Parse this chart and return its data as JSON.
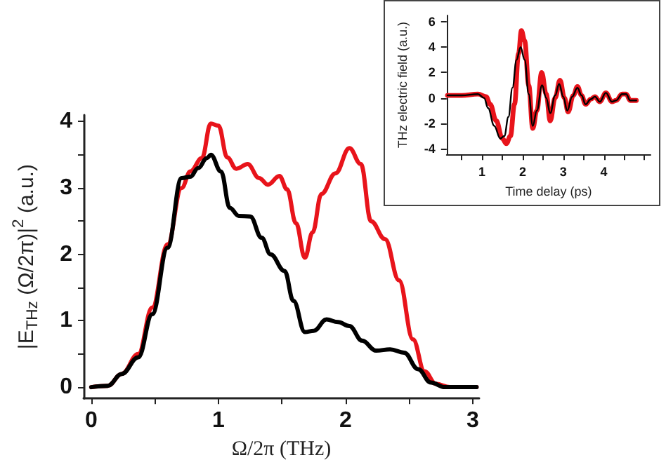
{
  "chart_data": [
    {
      "type": "line",
      "xlabel": "Ω/2π (THz)",
      "ylabel": "|E$_{THz}$ (Ω/2π)|$^{2}$ (a.u.)",
      "xlim": [
        -0.06,
        3.05
      ],
      "ylim": [
        -0.17,
        4.1
      ],
      "xticks": [
        0,
        {
          "value": 0.5,
          "label": null
        },
        1,
        {
          "value": 1.5,
          "label": null
        },
        2,
        {
          "value": 2.5,
          "label": null
        },
        3
      ],
      "yticks": [
        0,
        {
          "value": 0.5,
          "label": null
        },
        1,
        {
          "value": 1.5,
          "label": null
        },
        2,
        {
          "value": 2.5,
          "label": null
        },
        3,
        {
          "value": 3.5,
          "label": null
        },
        4
      ],
      "line_style": "solid",
      "series": [
        {
          "color": "#e8141b",
          "x": [
            0,
            0.13,
            0.24,
            0.37,
            0.48,
            0.6,
            0.71,
            0.78,
            0.87,
            0.94,
            1.0,
            1.07,
            1.14,
            1.23,
            1.32,
            1.39,
            1.48,
            1.54,
            1.61,
            1.68,
            1.74,
            1.81,
            1.92,
            2.03,
            2.12,
            2.2,
            2.31,
            2.42,
            2.53,
            2.62,
            2.71,
            2.82,
            3.03
          ],
          "values": [
            0,
            0.02,
            0.2,
            0.5,
            1.2,
            2.15,
            3.0,
            3.25,
            3.45,
            3.97,
            3.94,
            3.46,
            3.29,
            3.36,
            3.15,
            3.05,
            3.18,
            2.98,
            2.47,
            1.95,
            2.33,
            2.91,
            3.22,
            3.6,
            3.36,
            2.5,
            2.23,
            1.61,
            0.72,
            0.24,
            0.05,
            0,
            0
          ]
        },
        {
          "color": "#000000",
          "x": [
            0,
            0.13,
            0.24,
            0.37,
            0.48,
            0.6,
            0.71,
            0.78,
            0.84,
            0.91,
            0.94,
            1.02,
            1.09,
            1.16,
            1.25,
            1.34,
            1.41,
            1.52,
            1.59,
            1.68,
            1.75,
            1.85,
            1.94,
            2.03,
            2.13,
            2.24,
            2.35,
            2.46,
            2.57,
            2.67,
            2.78,
            3.03
          ],
          "values": [
            0,
            0.02,
            0.2,
            0.45,
            1.1,
            2.1,
            3.15,
            3.17,
            3.3,
            3.45,
            3.5,
            3.25,
            2.7,
            2.58,
            2.57,
            2.25,
            2.0,
            1.75,
            1.3,
            0.83,
            0.85,
            1.02,
            0.98,
            0.92,
            0.7,
            0.55,
            0.57,
            0.52,
            0.27,
            0.07,
            0,
            0
          ]
        }
      ]
    },
    {
      "type": "line",
      "xlabel": "Time delay (ps)",
      "ylabel": "THz electric field (a.u.)",
      "xlim": [
        0.13,
        5.15
      ],
      "ylim": [
        -4.45,
        6.5
      ],
      "xticks": [
        {
          "value": 0.5,
          "label": null
        },
        1,
        {
          "value": 1.5,
          "label": null
        },
        2,
        {
          "value": 2.5,
          "label": null
        },
        3,
        {
          "value": 3.5,
          "label": null
        },
        4,
        {
          "value": 4.5,
          "label": null
        },
        {
          "value": 5,
          "label": null
        }
      ],
      "yticks": [
        -4,
        -2,
        0,
        2,
        4,
        6
      ],
      "line_style": "solid",
      "series": [
        {
          "color": "#e8141b",
          "x": [
            0.15,
            0.5,
            0.9,
            1.1,
            1.2,
            1.35,
            1.5,
            1.6,
            1.7,
            1.8,
            1.9,
            1.97,
            2.05,
            2.15,
            2.25,
            2.35,
            2.47,
            2.58,
            2.68,
            2.8,
            2.92,
            3.03,
            3.12,
            3.25,
            3.35,
            3.45,
            3.55,
            3.68,
            3.78,
            3.9,
            4.05,
            4.2,
            4.3,
            4.45,
            4.55,
            4.65,
            4.8
          ],
          "values": [
            0.2,
            0.2,
            0.3,
            0.1,
            -0.5,
            -1.8,
            -3.2,
            -3.6,
            -3.0,
            -0.5,
            3.5,
            5.3,
            4.5,
            1.0,
            -2.4,
            -1.0,
            2.0,
            0.3,
            -1.8,
            0.0,
            1.4,
            0.0,
            -1.1,
            0.2,
            0.9,
            0.2,
            -0.5,
            -0.1,
            0.1,
            -0.3,
            0.4,
            -0.3,
            -0.2,
            0.3,
            0.3,
            -0.2,
            -0.2
          ]
        },
        {
          "color": "#000000",
          "x": [
            0.15,
            0.5,
            0.9,
            1.05,
            1.15,
            1.3,
            1.45,
            1.55,
            1.65,
            1.75,
            1.85,
            1.95,
            2.05,
            2.15,
            2.25,
            2.35,
            2.48,
            2.58,
            2.68,
            2.8,
            2.9,
            3.0,
            3.1,
            3.22,
            3.35,
            3.45,
            3.55,
            3.68,
            3.78,
            3.9,
            4.05,
            4.2,
            4.3,
            4.45,
            4.55,
            4.65,
            4.8
          ],
          "values": [
            0.2,
            0.2,
            0.3,
            0.0,
            -0.8,
            -2.2,
            -3.2,
            -3.0,
            -1.5,
            0.8,
            3.0,
            4.0,
            3.0,
            0.3,
            -2.2,
            -1.0,
            1.0,
            0.0,
            -1.2,
            0.2,
            1.1,
            0.1,
            -1.0,
            0.1,
            0.8,
            0.2,
            -0.5,
            -0.1,
            0.1,
            -0.3,
            0.4,
            -0.3,
            -0.2,
            0.3,
            0.3,
            -0.2,
            -0.2
          ]
        }
      ]
    }
  ]
}
